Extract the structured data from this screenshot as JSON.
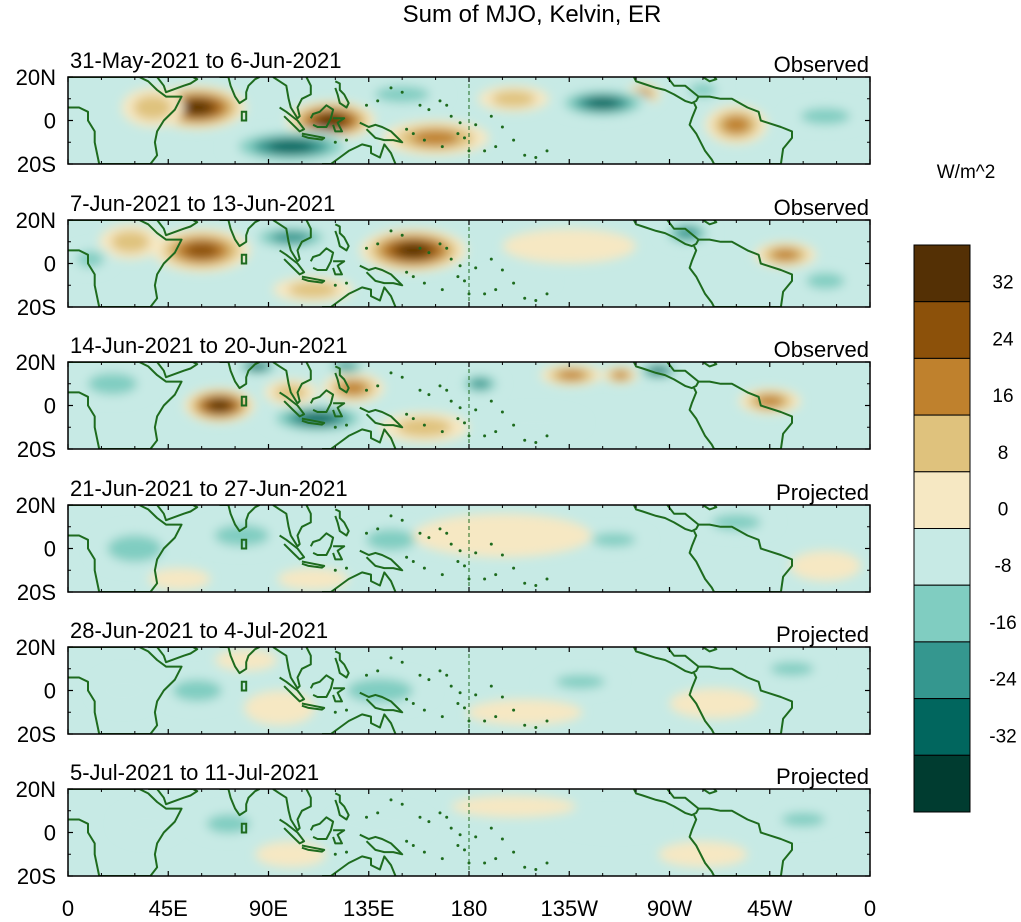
{
  "chart_data": {
    "type": "heatmap",
    "title": "Sum of MJO, Kelvin, ER",
    "colorbar": {
      "units": "W/m^2",
      "tick_labels": [
        "32",
        "24",
        "16",
        "8",
        "0",
        "-8",
        "-16",
        "-24",
        "-32"
      ],
      "levels": [
        40,
        32,
        24,
        16,
        8,
        0,
        -8,
        -16,
        -24,
        -32,
        -40
      ],
      "colors": [
        "#543005",
        "#8c510a",
        "#bf812d",
        "#dfc27d",
        "#f6e8c3",
        "#c7eae5",
        "#80cdc1",
        "#35978f",
        "#01665e",
        "#003c30"
      ]
    },
    "x_tick_labels": [
      "0",
      "45E",
      "90E",
      "135E",
      "180",
      "135W",
      "90W",
      "45W",
      "0"
    ],
    "y_tick_labels": [
      "20N",
      "0",
      "20S"
    ],
    "x_range_deg": [
      0,
      360
    ],
    "y_range_deg": [
      -20,
      20
    ],
    "land_outline_color": "#1e6b1e",
    "dateline_marker": "dashed line at 180",
    "panels": [
      {
        "date_range": "31-May-2021 to 6-Jun-2021",
        "status": "Observed",
        "anomalies": [
          {
            "lon": 58,
            "lat": 6,
            "value": 36,
            "rx": 22,
            "ry": 10
          },
          {
            "lon": 38,
            "lat": 6,
            "value": 16,
            "rx": 14,
            "ry": 9
          },
          {
            "lon": 118,
            "lat": 0,
            "value": 34,
            "rx": 20,
            "ry": 9
          },
          {
            "lon": 165,
            "lat": -8,
            "value": 22,
            "rx": 24,
            "ry": 8
          },
          {
            "lon": 200,
            "lat": 10,
            "value": 16,
            "rx": 16,
            "ry": 6
          },
          {
            "lon": 258,
            "lat": 12,
            "value": 18,
            "rx": 8,
            "ry": 5
          },
          {
            "lon": 300,
            "lat": -2,
            "value": 22,
            "rx": 14,
            "ry": 9
          },
          {
            "lon": 100,
            "lat": -12,
            "value": -28,
            "rx": 30,
            "ry": 8
          },
          {
            "lon": 150,
            "lat": 12,
            "value": -12,
            "rx": 20,
            "ry": 6
          },
          {
            "lon": 240,
            "lat": 8,
            "value": -26,
            "rx": 22,
            "ry": 7
          },
          {
            "lon": 285,
            "lat": 14,
            "value": -10,
            "rx": 10,
            "ry": 5
          },
          {
            "lon": 340,
            "lat": 2,
            "value": -12,
            "rx": 18,
            "ry": 6
          }
        ]
      },
      {
        "date_range": "7-Jun-2021 to 13-Jun-2021",
        "status": "Observed",
        "anomalies": [
          {
            "lon": 60,
            "lat": 6,
            "value": 30,
            "rx": 22,
            "ry": 10
          },
          {
            "lon": 155,
            "lat": 6,
            "value": 38,
            "rx": 24,
            "ry": 10
          },
          {
            "lon": 28,
            "lat": 10,
            "value": 12,
            "rx": 14,
            "ry": 8
          },
          {
            "lon": 110,
            "lat": -12,
            "value": 12,
            "rx": 18,
            "ry": 6
          },
          {
            "lon": 225,
            "lat": 8,
            "value": 8,
            "rx": 30,
            "ry": 8
          },
          {
            "lon": 322,
            "lat": 4,
            "value": 18,
            "rx": 14,
            "ry": 6
          },
          {
            "lon": 100,
            "lat": 12,
            "value": -22,
            "rx": 20,
            "ry": 6
          },
          {
            "lon": 278,
            "lat": 14,
            "value": -18,
            "rx": 12,
            "ry": 6
          },
          {
            "lon": 10,
            "lat": 2,
            "value": -10,
            "rx": 10,
            "ry": 6
          },
          {
            "lon": 200,
            "lat": -8,
            "value": -6,
            "rx": 18,
            "ry": 5
          },
          {
            "lon": 340,
            "lat": -8,
            "value": -12,
            "rx": 14,
            "ry": 6
          }
        ]
      },
      {
        "date_range": "14-Jun-2021 to 20-Jun-2021",
        "status": "Observed",
        "anomalies": [
          {
            "lon": 68,
            "lat": 0,
            "value": 34,
            "rx": 16,
            "ry": 8
          },
          {
            "lon": 128,
            "lat": 8,
            "value": 24,
            "rx": 14,
            "ry": 7
          },
          {
            "lon": 100,
            "lat": 6,
            "value": 16,
            "rx": 12,
            "ry": 6
          },
          {
            "lon": 226,
            "lat": 14,
            "value": 18,
            "rx": 14,
            "ry": 5
          },
          {
            "lon": 248,
            "lat": 14,
            "value": 22,
            "rx": 8,
            "ry": 4
          },
          {
            "lon": 315,
            "lat": 2,
            "value": 18,
            "rx": 14,
            "ry": 6
          },
          {
            "lon": 160,
            "lat": -10,
            "value": 10,
            "rx": 20,
            "ry": 7
          },
          {
            "lon": 20,
            "lat": 10,
            "value": -16,
            "rx": 18,
            "ry": 8
          },
          {
            "lon": 112,
            "lat": -6,
            "value": -26,
            "rx": 24,
            "ry": 7
          },
          {
            "lon": 85,
            "lat": 18,
            "value": -30,
            "rx": 10,
            "ry": 4
          },
          {
            "lon": 125,
            "lat": 18,
            "value": -24,
            "rx": 10,
            "ry": 4
          },
          {
            "lon": 185,
            "lat": 10,
            "value": -18,
            "rx": 10,
            "ry": 5
          },
          {
            "lon": 265,
            "lat": 16,
            "value": -28,
            "rx": 10,
            "ry": 4
          },
          {
            "lon": 210,
            "lat": -8,
            "value": -6,
            "rx": 22,
            "ry": 6
          }
        ]
      },
      {
        "date_range": "21-Jun-2021 to 27-Jun-2021",
        "status": "Projected",
        "anomalies": [
          {
            "lon": 30,
            "lat": 0,
            "value": -10,
            "rx": 20,
            "ry": 10
          },
          {
            "lon": 78,
            "lat": 6,
            "value": -10,
            "rx": 20,
            "ry": 8
          },
          {
            "lon": 145,
            "lat": 4,
            "value": -10,
            "rx": 18,
            "ry": 8
          },
          {
            "lon": 245,
            "lat": 4,
            "value": -16,
            "rx": 16,
            "ry": 5
          },
          {
            "lon": 300,
            "lat": 12,
            "value": -10,
            "rx": 18,
            "ry": 6
          },
          {
            "lon": 110,
            "lat": -14,
            "value": 6,
            "rx": 16,
            "ry": 5
          },
          {
            "lon": 195,
            "lat": 6,
            "value": 4,
            "rx": 40,
            "ry": 10
          },
          {
            "lon": 340,
            "lat": -8,
            "value": 6,
            "rx": 16,
            "ry": 7
          },
          {
            "lon": 50,
            "lat": -14,
            "value": 6,
            "rx": 14,
            "ry": 5
          }
        ]
      },
      {
        "date_range": "28-Jun-2021 to 4-Jul-2021",
        "status": "Projected",
        "anomalies": [
          {
            "lon": 58,
            "lat": 0,
            "value": -12,
            "rx": 18,
            "ry": 8
          },
          {
            "lon": 25,
            "lat": 0,
            "value": -6,
            "rx": 14,
            "ry": 9
          },
          {
            "lon": 140,
            "lat": 0,
            "value": -10,
            "rx": 24,
            "ry": 9
          },
          {
            "lon": 230,
            "lat": 4,
            "value": -12,
            "rx": 18,
            "ry": 5
          },
          {
            "lon": 325,
            "lat": 10,
            "value": -10,
            "rx": 16,
            "ry": 5
          },
          {
            "lon": 95,
            "lat": -8,
            "value": 8,
            "rx": 16,
            "ry": 8
          },
          {
            "lon": 80,
            "lat": 14,
            "value": 6,
            "rx": 14,
            "ry": 5
          },
          {
            "lon": 205,
            "lat": -10,
            "value": 6,
            "rx": 26,
            "ry": 6
          },
          {
            "lon": 290,
            "lat": -6,
            "value": 6,
            "rx": 20,
            "ry": 7
          }
        ]
      },
      {
        "date_range": "5-Jul-2021 to 11-Jul-2021",
        "status": "Projected",
        "anomalies": [
          {
            "lon": 72,
            "lat": 4,
            "value": -14,
            "rx": 16,
            "ry": 7
          },
          {
            "lon": 35,
            "lat": 4,
            "value": -6,
            "rx": 14,
            "ry": 8
          },
          {
            "lon": 140,
            "lat": 4,
            "value": -8,
            "rx": 22,
            "ry": 8
          },
          {
            "lon": 245,
            "lat": 4,
            "value": -8,
            "rx": 22,
            "ry": 5
          },
          {
            "lon": 330,
            "lat": 6,
            "value": -10,
            "rx": 16,
            "ry": 5
          },
          {
            "lon": 100,
            "lat": -10,
            "value": 6,
            "rx": 16,
            "ry": 6
          },
          {
            "lon": 200,
            "lat": 12,
            "value": 6,
            "rx": 28,
            "ry": 5
          },
          {
            "lon": 285,
            "lat": -10,
            "value": 6,
            "rx": 20,
            "ry": 6
          }
        ]
      }
    ]
  }
}
